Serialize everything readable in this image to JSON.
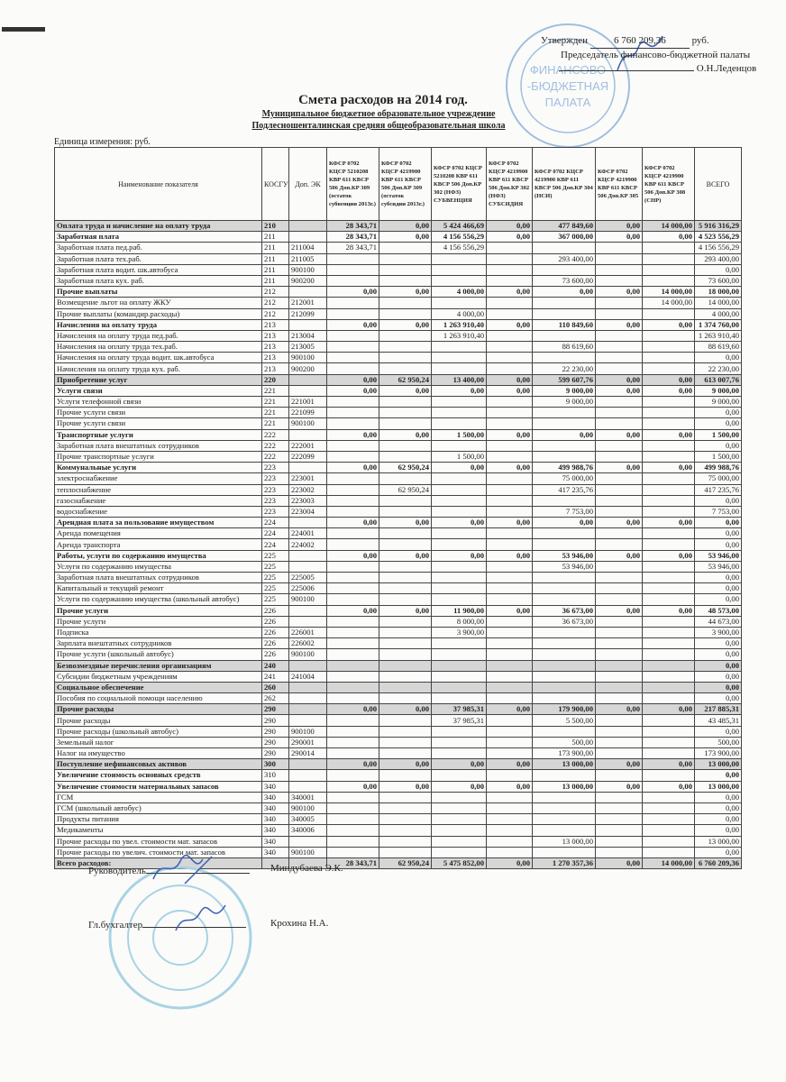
{
  "approval": {
    "approved_label": "Утвержден",
    "amount": "6 760 209,36",
    "currency": "руб.",
    "position": "Председатель финансово-бюджетной палаты",
    "name": "О.Н.Леденцов",
    "stamp_text": "ФИНАНСОВО-БЮДЖЕТНАЯ ПАЛАТА"
  },
  "title": "Смета расходов на 2014 год.",
  "subtitle1": "Муниципальное бюджетное образовательное учреждение",
  "subtitle2": "Подлесношенталинская средняя общеобразовательная школа",
  "units": "Единица измерения: руб.",
  "table": {
    "headers": {
      "name": "Наименование показателя",
      "kosgu": "КОСГУ",
      "dop": "Доп. ЭК",
      "c1": "КФСР 0702 КЦСР 5210208 КВР 611 КВСР 506 Доп.КР 309 (остаток субвенции 2013г.)",
      "c2": "КФСР 0702 КЦСР 4219900 КВР 611 КВСР 506 Доп.КР 309 (остаток субсидии 2013г.)",
      "c3": "КФСР 0702 КЦСР 5210208 КВР 611 КВСР 506 Доп.КР 302 (НФЗ) СУБВЕНЦИЯ",
      "c4": "КФСР 0702 КЦСР 4219900 КВР 611 КВСР 506 Доп.КР 302 (НФЗ) СУБСИДИЯ",
      "c5": "КФСР 0702 КЦСР 4219900 КВР 611 КВСР 506 Доп.КР 304 (НСИ)",
      "c6": "КФСР 0702 КЦСР 4219900 КВР 611 КВСР 506 Доп.КР 305",
      "c7": "КФСР 0702 КЦСР 4219900 КВР 611 КВСР 506 Доп.КР 308 (СНР)",
      "total": "ВСЕГО"
    },
    "rows": [
      {
        "t": "section",
        "label": "Оплата труда  и начисление на оплату  труда",
        "kosgu": "210",
        "dop": "",
        "v": [
          "28 343,71",
          "0,00",
          "5 424 466,69",
          "0,00",
          "477 849,60",
          "0,00",
          "14 000,00",
          "5 916 316,29"
        ]
      },
      {
        "t": "group",
        "label": "Заработная плата",
        "kosgu": "211",
        "dop": "",
        "v": [
          "28 343,71",
          "0,00",
          "4 156 556,29",
          "0,00",
          "367 000,00",
          "0,00",
          "0,00",
          "4 523 556,29"
        ]
      },
      {
        "t": "",
        "label": "Заработная  плата        пед.раб.",
        "kosgu": "211",
        "dop": "211004",
        "v": [
          "28 343,71",
          "",
          "4 156 556,29",
          "",
          "",
          "",
          "",
          "4 156 556,29"
        ]
      },
      {
        "t": "",
        "label": "Заработная  плата        тех.раб.",
        "kosgu": "211",
        "dop": "211005",
        "v": [
          "",
          "",
          "",
          "",
          "293 400,00",
          "",
          "",
          "293 400,00"
        ]
      },
      {
        "t": "",
        "label": "Заработная  плата        водит. шк.автобуса",
        "kosgu": "211",
        "dop": "900100",
        "v": [
          "",
          "",
          "",
          "",
          "",
          "",
          "",
          "0,00"
        ]
      },
      {
        "t": "",
        "label": "Заработная  плата        кух. раб.",
        "kosgu": "211",
        "dop": "900200",
        "v": [
          "",
          "",
          "",
          "",
          "73 600,00",
          "",
          "",
          "73 600,00"
        ]
      },
      {
        "t": "group",
        "label": "Прочие  выплаты",
        "kosgu": "212",
        "dop": "",
        "v": [
          "0,00",
          "0,00",
          "4 000,00",
          "0,00",
          "0,00",
          "0,00",
          "14 000,00",
          "18 000,00"
        ]
      },
      {
        "t": "",
        "label": "Возмещение льгот на оплату ЖКУ",
        "kosgu": "212",
        "dop": "212001",
        "v": [
          "",
          "",
          "",
          "",
          "",
          "",
          "14 000,00",
          "14 000,00"
        ]
      },
      {
        "t": "",
        "label": "Прочие выплаты (командир.расходы)",
        "kosgu": "212",
        "dop": "212099",
        "v": [
          "",
          "",
          "4 000,00",
          "",
          "",
          "",
          "",
          "4 000,00"
        ]
      },
      {
        "t": "group",
        "label": "Начисления на оплату труда",
        "kosgu": "213",
        "dop": "",
        "v": [
          "0,00",
          "0,00",
          "1 263 910,40",
          "0,00",
          "110 849,60",
          "0,00",
          "0,00",
          "1 374 760,00"
        ]
      },
      {
        "t": "",
        "label": "Начисления  на оплату труда     пед.раб.",
        "kosgu": "213",
        "dop": "213004",
        "v": [
          "",
          "",
          "1 263 910,40",
          "",
          "",
          "",
          "",
          "1 263 910,40"
        ]
      },
      {
        "t": "",
        "label": "Начисления  на оплату труда     тех.раб.",
        "kosgu": "213",
        "dop": "213005",
        "v": [
          "",
          "",
          "",
          "",
          "88 619,60",
          "",
          "",
          "88 619,60"
        ]
      },
      {
        "t": "",
        "label": "Начисления  на оплату труда     водит. шк.автобуса",
        "kosgu": "213",
        "dop": "900100",
        "v": [
          "",
          "",
          "",
          "",
          "",
          "",
          "",
          "0,00"
        ]
      },
      {
        "t": "",
        "label": "Начисления  на оплату труда     кух. раб.",
        "kosgu": "213",
        "dop": "900200",
        "v": [
          "",
          "",
          "",
          "",
          "22 230,00",
          "",
          "",
          "22 230,00"
        ]
      },
      {
        "t": "section",
        "label": "Приобретение  услуг",
        "kosgu": "220",
        "dop": "",
        "v": [
          "0,00",
          "62 950,24",
          "13 400,00",
          "0,00",
          "599 607,76",
          "0,00",
          "0,00",
          "613 007,76"
        ]
      },
      {
        "t": "group",
        "label": "Услуги  связи",
        "kosgu": "221",
        "dop": "",
        "v": [
          "0,00",
          "0,00",
          "0,00",
          "0,00",
          "9 000,00",
          "0,00",
          "0,00",
          "9 000,00"
        ]
      },
      {
        "t": "",
        "label": "Услуги  телефонной связи",
        "kosgu": "221",
        "dop": "221001",
        "v": [
          "",
          "",
          "",
          "",
          "9 000,00",
          "",
          "",
          "9 000,00"
        ]
      },
      {
        "t": "",
        "label": "Прочие услуги связи",
        "kosgu": "221",
        "dop": "221099",
        "v": [
          "",
          "",
          "",
          "",
          "",
          "",
          "",
          "0,00"
        ]
      },
      {
        "t": "",
        "label": "Прочие услуги связи",
        "kosgu": "221",
        "dop": "900100",
        "v": [
          "",
          "",
          "",
          "",
          "",
          "",
          "",
          "0,00"
        ]
      },
      {
        "t": "group",
        "label": "Транспортные  услуги",
        "kosgu": "222",
        "dop": "",
        "v": [
          "0,00",
          "0,00",
          "1 500,00",
          "0,00",
          "0,00",
          "0,00",
          "0,00",
          "1 500,00"
        ]
      },
      {
        "t": "",
        "label": "Заработная плата внештатных сотрудников",
        "kosgu": "222",
        "dop": "222001",
        "v": [
          "",
          "",
          "",
          "",
          "",
          "",
          "",
          "0,00"
        ]
      },
      {
        "t": "",
        "label": "Прочие транспортные услуги",
        "kosgu": "222",
        "dop": "222099",
        "v": [
          "",
          "",
          "1 500,00",
          "",
          "",
          "",
          "",
          "1 500,00"
        ]
      },
      {
        "t": "group",
        "label": "Коммунальные  услуги",
        "kosgu": "223",
        "dop": "",
        "v": [
          "0,00",
          "62 950,24",
          "0,00",
          "0,00",
          "499 988,76",
          "0,00",
          "0,00",
          "499 988,76"
        ]
      },
      {
        "t": "",
        "label": "  электроснабжение",
        "kosgu": "223",
        "dop": "223001",
        "v": [
          "",
          "",
          "",
          "",
          "75 000,00",
          "",
          "",
          "75 000,00"
        ]
      },
      {
        "t": "",
        "label": "  теплоснабжение",
        "kosgu": "223",
        "dop": "223002",
        "v": [
          "",
          "62 950,24",
          "",
          "",
          "417 235,76",
          "",
          "",
          "417 235,76"
        ]
      },
      {
        "t": "",
        "label": "  газоснабжение",
        "kosgu": "223",
        "dop": "223003",
        "v": [
          "",
          "",
          "",
          "",
          "",
          "",
          "",
          "0,00"
        ]
      },
      {
        "t": "",
        "label": "  водоснабжение",
        "kosgu": "223",
        "dop": "223004",
        "v": [
          "",
          "",
          "",
          "",
          "7 753,00",
          "",
          "",
          "7 753,00"
        ]
      },
      {
        "t": "group",
        "label": "Арендная плата за пользование имуществом",
        "kosgu": "224",
        "dop": "",
        "v": [
          "0,00",
          "0,00",
          "0,00",
          "0,00",
          "0,00",
          "0,00",
          "0,00",
          "0,00"
        ]
      },
      {
        "t": "",
        "label": "Аренда помещения",
        "kosgu": "224",
        "dop": "224001",
        "v": [
          "",
          "",
          "",
          "",
          "",
          "",
          "",
          "0,00"
        ]
      },
      {
        "t": "",
        "label": "Аренда транспорта",
        "kosgu": "224",
        "dop": "224002",
        "v": [
          "",
          "",
          "",
          "",
          "",
          "",
          "",
          "0,00"
        ]
      },
      {
        "t": "group",
        "label": "Работы, услуги по содержанию имущества",
        "kosgu": "225",
        "dop": "",
        "v": [
          "0,00",
          "0,00",
          "0,00",
          "0,00",
          "53 946,00",
          "0,00",
          "0,00",
          "53 946,00"
        ]
      },
      {
        "t": "",
        "label": "Услуги по содержанию имущества",
        "kosgu": "225",
        "dop": "",
        "v": [
          "",
          "",
          "",
          "",
          "53 946,00",
          "",
          "",
          "53 946,00"
        ]
      },
      {
        "t": "",
        "label": "Заработная плата внештатных сотрудников",
        "kosgu": "225",
        "dop": "225005",
        "v": [
          "",
          "",
          "",
          "",
          "",
          "",
          "",
          "0,00"
        ]
      },
      {
        "t": "",
        "label": "Капитальный и текущий ремонт",
        "kosgu": "225",
        "dop": "225006",
        "v": [
          "",
          "",
          "",
          "",
          "",
          "",
          "",
          "0,00"
        ]
      },
      {
        "t": "",
        "label": "Услуги по содержанию имущества (школьный автобус)",
        "kosgu": "225",
        "dop": "900100",
        "v": [
          "",
          "",
          "",
          "",
          "",
          "",
          "",
          "0,00"
        ]
      },
      {
        "t": "group",
        "label": "Прочие  услуги",
        "kosgu": "226",
        "dop": "",
        "v": [
          "0,00",
          "0,00",
          "11 900,00",
          "0,00",
          "36 673,00",
          "0,00",
          "0,00",
          "48 573,00"
        ]
      },
      {
        "t": "",
        "label": "Прочие услуги",
        "kosgu": "226",
        "dop": "",
        "v": [
          "",
          "",
          "8 000,00",
          "",
          "36 673,00",
          "",
          "",
          "44 673,00"
        ]
      },
      {
        "t": "",
        "label": "Подписка",
        "kosgu": "226",
        "dop": "226001",
        "v": [
          "",
          "",
          "3 900,00",
          "",
          "",
          "",
          "",
          "3 900,00"
        ]
      },
      {
        "t": "",
        "label": "Зарплата внештатных сотрудников",
        "kosgu": "226",
        "dop": "226002",
        "v": [
          "",
          "",
          "",
          "",
          "",
          "",
          "",
          "0,00"
        ]
      },
      {
        "t": "",
        "label": "Прочие услуги (школьный автобус)",
        "kosgu": "226",
        "dop": "900100",
        "v": [
          "",
          "",
          "",
          "",
          "",
          "",
          "",
          "0,00"
        ]
      },
      {
        "t": "section",
        "label": "Безвозмездные перечисления организациям",
        "kosgu": "240",
        "dop": "",
        "v": [
          "",
          "",
          "",
          "",
          "",
          "",
          "",
          "0,00"
        ]
      },
      {
        "t": "",
        "label": "Субсидии бюджетным учреждениям",
        "kosgu": "241",
        "dop": "241004",
        "v": [
          "",
          "",
          "",
          "",
          "",
          "",
          "",
          "0,00"
        ]
      },
      {
        "t": "section",
        "label": "Социальное обеспечение",
        "kosgu": "260",
        "dop": "",
        "v": [
          "",
          "",
          "",
          "",
          "",
          "",
          "",
          "0,00"
        ]
      },
      {
        "t": "",
        "label": "Пособия по социальной помощи населению",
        "kosgu": "262",
        "dop": "",
        "v": [
          "",
          "",
          "",
          "",
          "",
          "",
          "",
          "0,00"
        ]
      },
      {
        "t": "section",
        "label": "Прочие расходы",
        "kosgu": "290",
        "dop": "",
        "v": [
          "0,00",
          "0,00",
          "37 985,31",
          "0,00",
          "179 900,00",
          "0,00",
          "0,00",
          "217 885,31"
        ]
      },
      {
        "t": "",
        "label": "Прочие расходы",
        "kosgu": "290",
        "dop": "",
        "v": [
          "",
          "",
          "37 985,31",
          "",
          "5 500,00",
          "",
          "",
          "43 485,31"
        ]
      },
      {
        "t": "",
        "label": "Прочие расходы  (школьный автобус)",
        "kosgu": "290",
        "dop": "900100",
        "v": [
          "",
          "",
          "",
          "",
          "",
          "",
          "",
          "0,00"
        ]
      },
      {
        "t": "",
        "label": "Земельный налог",
        "kosgu": "290",
        "dop": "290001",
        "v": [
          "",
          "",
          "",
          "",
          "500,00",
          "",
          "",
          "500,00"
        ]
      },
      {
        "t": "",
        "label": "Налог на имущество",
        "kosgu": "290",
        "dop": "290014",
        "v": [
          "",
          "",
          "",
          "",
          "173 900,00",
          "",
          "",
          "173 900,00"
        ]
      },
      {
        "t": "section",
        "label": "Поступление нефинансовых активов",
        "kosgu": "300",
        "dop": "",
        "v": [
          "0,00",
          "0,00",
          "0,00",
          "0,00",
          "13 000,00",
          "0,00",
          "0,00",
          "13 000,00"
        ]
      },
      {
        "t": "group",
        "label": "Увеличение стоимость основных средств",
        "kosgu": "310",
        "dop": "",
        "v": [
          "",
          "",
          "",
          "",
          "",
          "",
          "",
          "0,00"
        ]
      },
      {
        "t": "group",
        "label": "Увеличение стоимости  материальных запасов",
        "kosgu": "340",
        "dop": "",
        "v": [
          "0,00",
          "0,00",
          "0,00",
          "0,00",
          "13 000,00",
          "0,00",
          "0,00",
          "13 000,00"
        ]
      },
      {
        "t": "",
        "label": "ГСМ",
        "kosgu": "340",
        "dop": "340001",
        "v": [
          "",
          "",
          "",
          "",
          "",
          "",
          "",
          "0,00"
        ]
      },
      {
        "t": "",
        "label": "ГСМ    (школьный автобус)",
        "kosgu": "340",
        "dop": "900100",
        "v": [
          "",
          "",
          "",
          "",
          "",
          "",
          "",
          "0,00"
        ]
      },
      {
        "t": "",
        "label": "Продукты питания",
        "kosgu": "340",
        "dop": "340005",
        "v": [
          "",
          "",
          "",
          "",
          "",
          "",
          "",
          "0,00"
        ]
      },
      {
        "t": "",
        "label": "Медикаменты",
        "kosgu": "340",
        "dop": "340006",
        "v": [
          "",
          "",
          "",
          "",
          "",
          "",
          "",
          "0,00"
        ]
      },
      {
        "t": "",
        "label": "Прочие расходы по увел. стоимости мат. запасов",
        "kosgu": "340",
        "dop": "",
        "v": [
          "",
          "",
          "",
          "",
          "13 000,00",
          "",
          "",
          "13 000,00"
        ]
      },
      {
        "t": "",
        "label": "Прочие расходы по увелич. стоимости мат. запасов",
        "kosgu": "340",
        "dop": "900100",
        "v": [
          "",
          "",
          "",
          "",
          "",
          "",
          "",
          "0,00"
        ]
      },
      {
        "t": "total",
        "label": "Всего  расходов:",
        "kosgu": "",
        "dop": "",
        "v": [
          "28 343,71",
          "62 950,24",
          "5 475 852,00",
          "0,00",
          "1 270 357,36",
          "0,00",
          "14 000,00",
          "6 760 209,36"
        ]
      }
    ]
  },
  "signatures": {
    "head_label": "Руководитель",
    "head_name": "Миндубаева Э.К.",
    "accountant_label": "Гл.бухгалтер",
    "accountant_name": "Крохина Н.А."
  },
  "colors": {
    "stamp": "#8fb4d6",
    "shade": "#d6d6d6",
    "signature_ink": "#3a5fb0"
  }
}
